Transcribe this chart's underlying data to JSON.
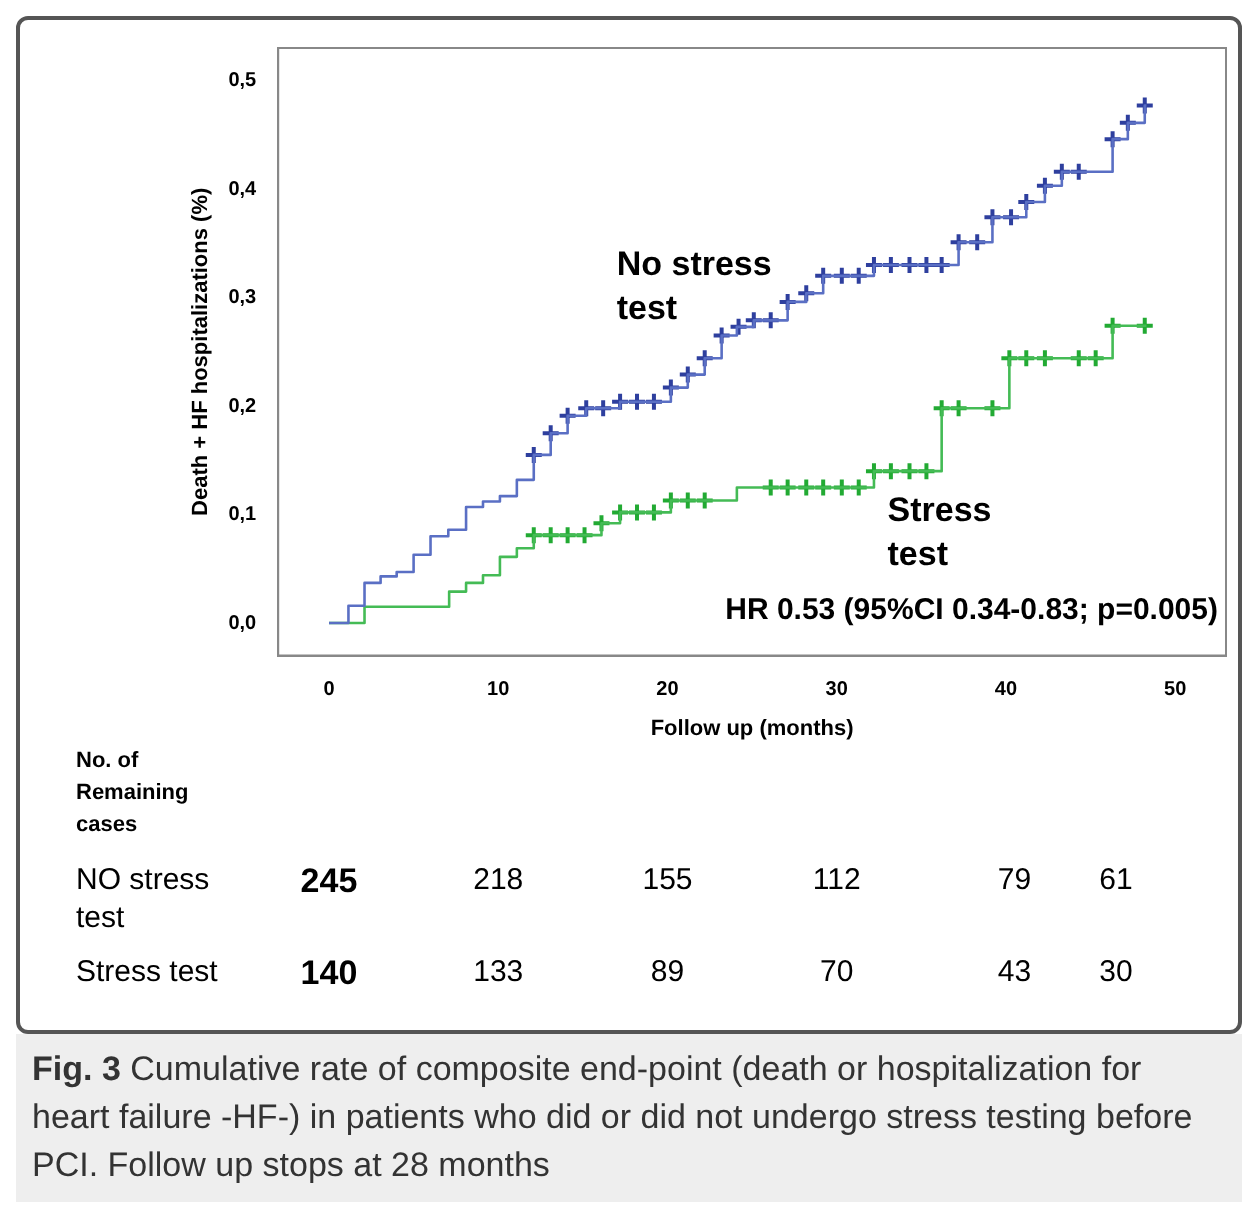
{
  "chart_data": {
    "type": "step",
    "xlabel": "Follow up (months)",
    "ylabel": "Death + HF hospitalizations (%)",
    "xlim": [
      -3,
      53
    ],
    "xticks": [
      0,
      10,
      20,
      30,
      40,
      50
    ],
    "ylim": [
      -0.03,
      0.53
    ],
    "yticks": [
      {
        "value": 0,
        "label": "0,0"
      },
      {
        "value": 0.1,
        "label": "0,1"
      },
      {
        "value": 0.2,
        "label": "0,2"
      },
      {
        "value": 0.3,
        "label": "0,3"
      },
      {
        "value": 0.4,
        "label": "0,4"
      },
      {
        "value": 0.5,
        "label": "0,5"
      }
    ],
    "grid": false,
    "line_style": "solid",
    "series": [
      {
        "marker": "none",
        "color": "#5a6fc4",
        "x": [
          0,
          1.15,
          2.1,
          3.05,
          4.0,
          5.0,
          6.0,
          7.05,
          8.1,
          9.1,
          10.1,
          11.1,
          12.1,
          13.1,
          14.1,
          15.2,
          17.2,
          20.2,
          21.2,
          22.2,
          23.2,
          24.1,
          25.1,
          27.1,
          28.2,
          29.2,
          32.2,
          37.2,
          39.2,
          41.2,
          42.3,
          43.3,
          46.3,
          47.2,
          48.2,
          48.3
        ],
        "values": [
          0,
          0.016,
          0.037,
          0.043,
          0.047,
          0.063,
          0.08,
          0.086,
          0.107,
          0.112,
          0.117,
          0.132,
          0.155,
          0.175,
          0.191,
          0.198,
          0.204,
          0.217,
          0.229,
          0.244,
          0.265,
          0.273,
          0.279,
          0.296,
          0.304,
          0.32,
          0.33,
          0.351,
          0.374,
          0.388,
          0.403,
          0.416,
          0.446,
          0.461,
          0.477,
          0.477
        ]
      },
      {
        "marker": "none",
        "color": "#44bb55",
        "x": [
          0,
          2.1,
          7.1,
          8.1,
          9.1,
          10.1,
          11.1,
          12.1,
          16.1,
          17.2,
          20.2,
          24.1,
          32.2,
          36.2,
          40.2,
          46.3,
          48.3
        ],
        "values": [
          0,
          0.015,
          0.029,
          0.037,
          0.044,
          0.061,
          0.069,
          0.081,
          0.092,
          0.102,
          0.113,
          0.125,
          0.14,
          0.198,
          0.244,
          0.274,
          0.274
        ]
      },
      {
        "type": "scatter",
        "marker": "cross",
        "color": "#2e3f9e",
        "x": [
          12.1,
          13.1,
          14.1,
          15.2,
          16.2,
          17.2,
          18.2,
          19.2,
          20.2,
          21.2,
          22.2,
          23.2,
          24.2,
          25.1,
          26.1,
          27.1,
          28.2,
          29.2,
          30.3,
          31.3,
          32.2,
          33.2,
          34.3,
          35.3,
          36.2,
          37.2,
          38.3,
          39.2,
          40.3,
          41.2,
          42.3,
          43.3,
          44.3,
          46.3,
          47.2,
          48.2
        ],
        "values": [
          0.155,
          0.175,
          0.191,
          0.198,
          0.198,
          0.204,
          0.204,
          0.204,
          0.217,
          0.229,
          0.244,
          0.265,
          0.273,
          0.279,
          0.279,
          0.296,
          0.304,
          0.32,
          0.32,
          0.32,
          0.33,
          0.33,
          0.33,
          0.33,
          0.33,
          0.351,
          0.351,
          0.374,
          0.374,
          0.388,
          0.403,
          0.416,
          0.416,
          0.446,
          0.461,
          0.477
        ]
      },
      {
        "type": "scatter",
        "marker": "cross",
        "color": "#22aa33",
        "x": [
          12.1,
          13.1,
          14.1,
          15.1,
          16.1,
          17.2,
          18.2,
          19.2,
          20.2,
          21.2,
          22.2,
          26.1,
          27.1,
          28.2,
          29.2,
          30.3,
          31.3,
          32.2,
          33.2,
          34.3,
          35.3,
          36.2,
          37.2,
          39.2,
          40.2,
          41.2,
          42.3,
          44.3,
          45.3,
          46.3,
          48.2
        ],
        "values": [
          0.081,
          0.081,
          0.081,
          0.081,
          0.092,
          0.102,
          0.102,
          0.102,
          0.113,
          0.113,
          0.113,
          0.125,
          0.125,
          0.125,
          0.125,
          0.125,
          0.125,
          0.14,
          0.14,
          0.14,
          0.14,
          0.198,
          0.198,
          0.198,
          0.244,
          0.244,
          0.244,
          0.244,
          0.244,
          0.274,
          0.274
        ]
      }
    ],
    "annotations": [
      "No stress test",
      "Stress test",
      "HR 0.53 (95%CI 0.34-0.83; p=0.005)",
      "No. of Remaining cases",
      "NO stress test",
      "245",
      "218",
      "155",
      "112",
      "79",
      "61",
      "Stress test",
      "140",
      "133",
      "89",
      "70",
      "43",
      "30",
      "Fig. 3 Cumulative rate of composite end-point (death or hospitalization for heart failure -HF-) in patients who did or did not undergo stress testing before PCI. Follow up stops at 28 months"
    ]
  }
}
